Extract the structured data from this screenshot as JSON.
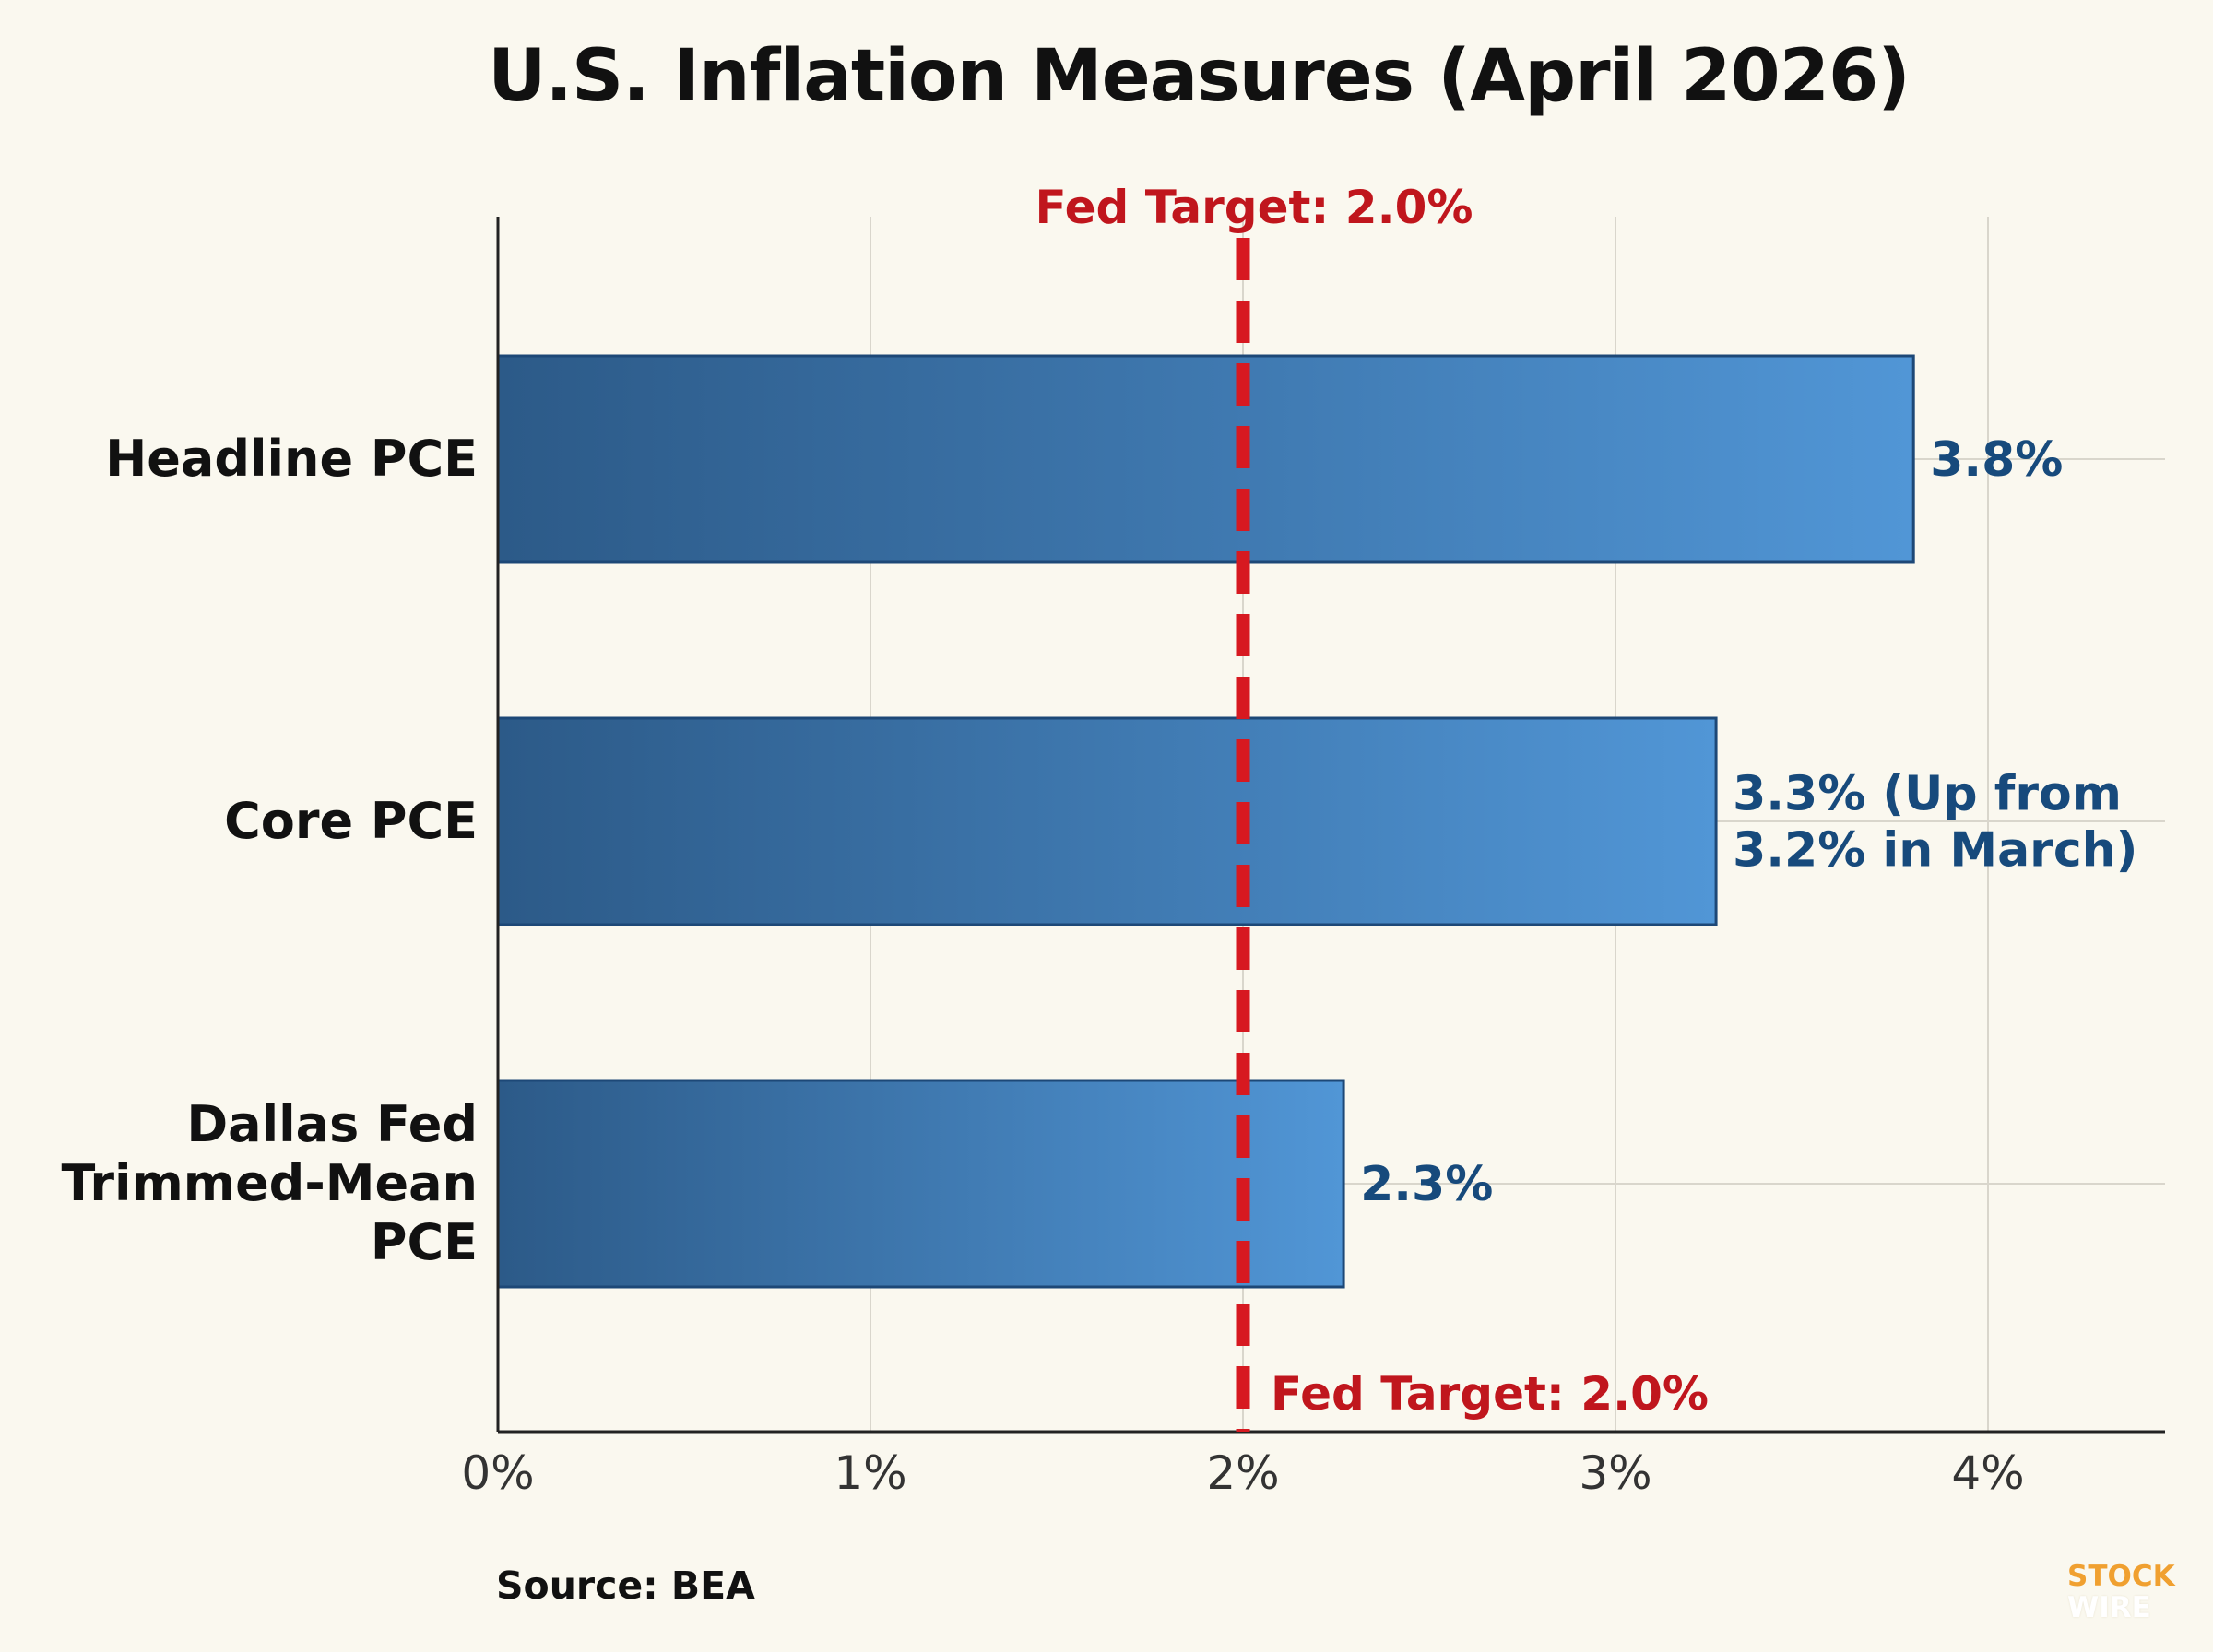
{
  "chart_data": {
    "type": "bar",
    "orientation": "horizontal",
    "title": "U.S. Inflation Measures (April 2026)",
    "categories": [
      [
        "Headline PCE"
      ],
      [
        "Core PCE"
      ],
      [
        "Dallas Fed",
        "Trimmed-Mean",
        "PCE"
      ]
    ],
    "values": [
      3.8,
      3.27,
      2.27
    ],
    "value_labels": [
      [
        "3.8%"
      ],
      [
        "3.3% (Up from",
        "3.2% in March)"
      ],
      [
        "2.3%"
      ]
    ],
    "x_ticks": [
      0,
      1,
      2,
      3,
      4
    ],
    "x_tick_labels": [
      "0%",
      "1%",
      "2%",
      "3%",
      "4%"
    ],
    "xlim": [
      0,
      4.48
    ],
    "grid": true,
    "reference_line": {
      "value": 2.0,
      "label_top": "Fed Target: 2.0%",
      "label_bottom": "Fed Target: 2.0%",
      "style": "dashed",
      "color": "#d71920"
    },
    "bar_color_start": "#2c5a88",
    "bar_color_end": "#5196d6",
    "label_color": "#174a7c"
  },
  "source": "Source: BEA",
  "logo": {
    "line1": "STOCK",
    "line2": "WIRE"
  }
}
